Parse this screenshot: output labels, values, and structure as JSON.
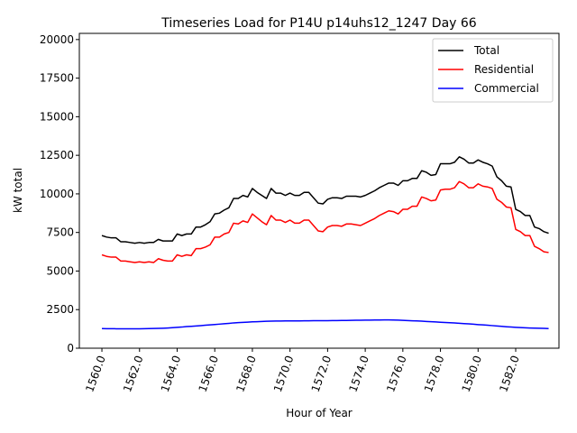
{
  "chart_data": {
    "type": "line",
    "title": "Timeseries Load for P14U p14uhs12_1247  Day 66",
    "xlabel": "Hour of Year",
    "ylabel": "kW total",
    "xlim": [
      1558.8,
      1584.3
    ],
    "ylim": [
      0,
      20400
    ],
    "x_ticks": [
      1560,
      1562,
      1564,
      1566,
      1568,
      1570,
      1572,
      1574,
      1576,
      1578,
      1580,
      1582
    ],
    "x_tick_labels": [
      "1560.0",
      "1562.0",
      "1564.0",
      "1566.0",
      "1568.0",
      "1570.0",
      "1572.0",
      "1574.0",
      "1576.0",
      "1578.0",
      "1580.0",
      "1582.0"
    ],
    "y_ticks": [
      0,
      2500,
      5000,
      7500,
      10000,
      12500,
      15000,
      17500,
      20000
    ],
    "y_tick_labels": [
      "0",
      "2500",
      "5000",
      "7500",
      "10000",
      "12500",
      "15000",
      "17500",
      "20000"
    ],
    "legend_position": "top-right",
    "x": [
      1560.0,
      1560.25,
      1560.5,
      1560.75,
      1561.0,
      1561.25,
      1561.5,
      1561.75,
      1562.0,
      1562.25,
      1562.5,
      1562.75,
      1563.0,
      1563.25,
      1563.5,
      1563.75,
      1564.0,
      1564.25,
      1564.5,
      1564.75,
      1565.0,
      1565.25,
      1565.5,
      1565.75,
      1566.0,
      1566.25,
      1566.5,
      1566.75,
      1567.0,
      1567.25,
      1567.5,
      1567.75,
      1568.0,
      1568.25,
      1568.5,
      1568.75,
      1569.0,
      1569.25,
      1569.5,
      1569.75,
      1570.0,
      1570.25,
      1570.5,
      1570.75,
      1571.0,
      1571.25,
      1571.5,
      1571.75,
      1572.0,
      1572.25,
      1572.5,
      1572.75,
      1573.0,
      1573.25,
      1573.5,
      1573.75,
      1574.0,
      1574.25,
      1574.5,
      1574.75,
      1575.0,
      1575.25,
      1575.5,
      1575.75,
      1576.0,
      1576.25,
      1576.5,
      1576.75,
      1577.0,
      1577.25,
      1577.5,
      1577.75,
      1578.0,
      1578.25,
      1578.5,
      1578.75,
      1579.0,
      1579.25,
      1579.5,
      1579.75,
      1580.0,
      1580.25,
      1580.5,
      1580.75,
      1581.0,
      1581.25,
      1581.5,
      1581.75,
      1582.0,
      1582.25,
      1582.5,
      1582.75,
      1583.0,
      1583.25,
      1583.5,
      1583.75
    ],
    "series": [
      {
        "name": "Total",
        "color": "#000000",
        "values": [
          7300,
          7200,
          7150,
          7150,
          6900,
          6900,
          6850,
          6800,
          6850,
          6800,
          6850,
          6850,
          7050,
          6950,
          6950,
          6950,
          7400,
          7300,
          7400,
          7400,
          7850,
          7850,
          8000,
          8200,
          8700,
          8750,
          8950,
          9100,
          9700,
          9700,
          9900,
          9800,
          10350,
          10100,
          9900,
          9700,
          10350,
          10050,
          10050,
          9900,
          10050,
          9900,
          9900,
          10100,
          10100,
          9750,
          9400,
          9350,
          9650,
          9750,
          9750,
          9700,
          9850,
          9850,
          9850,
          9800,
          9900,
          10050,
          10200,
          10400,
          10550,
          10700,
          10700,
          10550,
          10850,
          10850,
          11000,
          11000,
          11500,
          11400,
          11200,
          11250,
          11950,
          11950,
          11950,
          12050,
          12400,
          12250,
          12000,
          12000,
          12200,
          12050,
          11950,
          11800,
          11100,
          10850,
          10500,
          10450,
          9000,
          8850,
          8600,
          8600,
          7850,
          7750,
          7550,
          7450
        ]
      },
      {
        "name": "Residential",
        "color": "#ff0000",
        "values": [
          6050,
          5950,
          5900,
          5900,
          5650,
          5650,
          5600,
          5550,
          5600,
          5550,
          5600,
          5550,
          5800,
          5700,
          5650,
          5650,
          6050,
          5950,
          6050,
          6000,
          6450,
          6450,
          6550,
          6700,
          7200,
          7200,
          7400,
          7500,
          8100,
          8050,
          8250,
          8150,
          8700,
          8450,
          8200,
          8000,
          8600,
          8300,
          8300,
          8150,
          8300,
          8100,
          8100,
          8300,
          8300,
          7950,
          7600,
          7550,
          7850,
          7950,
          7950,
          7900,
          8050,
          8050,
          8000,
          7950,
          8100,
          8250,
          8400,
          8600,
          8750,
          8900,
          8850,
          8700,
          9000,
          9000,
          9200,
          9200,
          9800,
          9700,
          9550,
          9600,
          10250,
          10300,
          10300,
          10400,
          10800,
          10650,
          10400,
          10400,
          10650,
          10500,
          10450,
          10350,
          9650,
          9450,
          9150,
          9100,
          7700,
          7550,
          7300,
          7300,
          6600,
          6450,
          6250,
          6200
        ]
      },
      {
        "name": "Commercial",
        "color": "#0000ff",
        "values": [
          1270,
          1265,
          1265,
          1260,
          1255,
          1255,
          1255,
          1255,
          1260,
          1265,
          1270,
          1280,
          1285,
          1295,
          1310,
          1330,
          1350,
          1370,
          1400,
          1420,
          1440,
          1465,
          1490,
          1510,
          1535,
          1560,
          1585,
          1610,
          1640,
          1660,
          1675,
          1690,
          1710,
          1720,
          1735,
          1745,
          1755,
          1760,
          1760,
          1765,
          1765,
          1770,
          1770,
          1775,
          1775,
          1780,
          1780,
          1780,
          1785,
          1790,
          1790,
          1795,
          1800,
          1805,
          1810,
          1815,
          1820,
          1820,
          1825,
          1830,
          1835,
          1835,
          1830,
          1820,
          1805,
          1790,
          1775,
          1765,
          1750,
          1735,
          1715,
          1700,
          1680,
          1665,
          1650,
          1635,
          1615,
          1595,
          1575,
          1555,
          1530,
          1510,
          1490,
          1465,
          1440,
          1415,
          1390,
          1370,
          1350,
          1335,
          1320,
          1310,
          1300,
          1295,
          1285,
          1270
        ]
      }
    ]
  }
}
